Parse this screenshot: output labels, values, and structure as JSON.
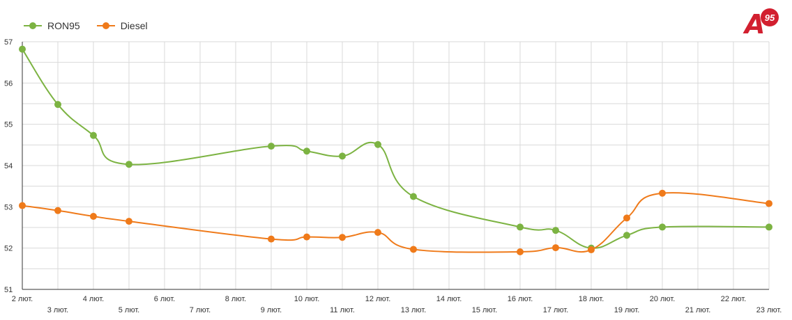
{
  "colors": {
    "ron95": "#7cb342",
    "diesel": "#ef7a1a",
    "grid": "#d9d9d9",
    "axis": "#333333"
  },
  "logo": {
    "letter": "A",
    "number": "95"
  },
  "chart_data": {
    "type": "line",
    "title": "",
    "xlabel": "",
    "ylabel": "",
    "ylim": [
      51,
      57
    ],
    "grid": true,
    "legend_position": "top-left",
    "x_tick_labels": [
      "2 лют.",
      "3 лют.",
      "4 лют.",
      "5 лют.",
      "6 лют.",
      "7 лют.",
      "8 лют.",
      "9 лют.",
      "10 лют.",
      "11 лют.",
      "12 лют.",
      "13 лют.",
      "14 лют.",
      "15 лют.",
      "16 лют.",
      "17 лют.",
      "18 лют.",
      "19 лют.",
      "20 лют.",
      "21 лют.",
      "22 лют.",
      "23 лют."
    ],
    "y_ticks": [
      51,
      52,
      53,
      54,
      55,
      56,
      57
    ],
    "series": [
      {
        "name": "RON95",
        "color_key": "ron95",
        "points": [
          {
            "x": "2 лют.",
            "y": 56.82
          },
          {
            "x": "3 лют.",
            "y": 55.48
          },
          {
            "x": "4 лют.",
            "y": 54.73
          },
          {
            "x": "5 лют.",
            "y": 54.03
          },
          {
            "x": "9 лют.",
            "y": 54.47
          },
          {
            "x": "10 лют.",
            "y": 54.35
          },
          {
            "x": "11 лют.",
            "y": 54.23
          },
          {
            "x": "12 лют.",
            "y": 54.51
          },
          {
            "x": "13 лют.",
            "y": 53.25
          },
          {
            "x": "16 лют.",
            "y": 52.51
          },
          {
            "x": "17 лют.",
            "y": 52.43
          },
          {
            "x": "18 лют.",
            "y": 52.0
          },
          {
            "x": "19 лют.",
            "y": 52.31
          },
          {
            "x": "20 лют.",
            "y": 52.51
          },
          {
            "x": "23 лют.",
            "y": 52.51
          }
        ]
      },
      {
        "name": "Diesel",
        "color_key": "diesel",
        "points": [
          {
            "x": "2 лют.",
            "y": 53.03
          },
          {
            "x": "3 лют.",
            "y": 52.91
          },
          {
            "x": "4 лют.",
            "y": 52.77
          },
          {
            "x": "5 лют.",
            "y": 52.65
          },
          {
            "x": "9 лют.",
            "y": 52.22
          },
          {
            "x": "10 лют.",
            "y": 52.27
          },
          {
            "x": "11 лют.",
            "y": 52.26
          },
          {
            "x": "12 лют.",
            "y": 52.38
          },
          {
            "x": "13 лют.",
            "y": 51.97
          },
          {
            "x": "16 лют.",
            "y": 51.91
          },
          {
            "x": "17 лют.",
            "y": 52.01
          },
          {
            "x": "18 лют.",
            "y": 51.96
          },
          {
            "x": "19 лют.",
            "y": 52.73
          },
          {
            "x": "20 лют.",
            "y": 53.33
          },
          {
            "x": "23 лют.",
            "y": 53.08
          }
        ]
      }
    ]
  }
}
